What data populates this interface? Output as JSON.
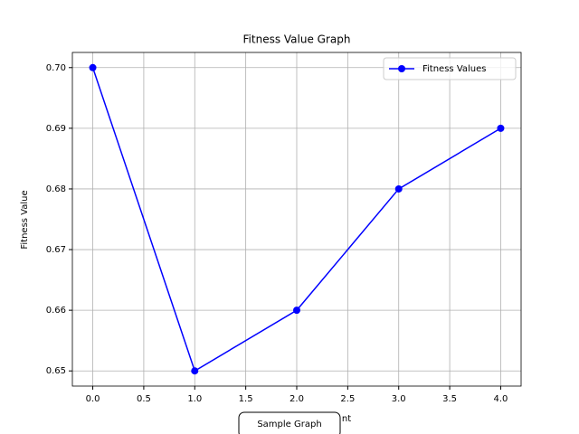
{
  "chart_data": {
    "type": "line",
    "title": "Fitness Value Graph",
    "x_label": "nt",
    "y_label": "Fitness Value",
    "annotation": "Sample Graph",
    "x": [
      0,
      1,
      2,
      3,
      4
    ],
    "series": [
      {
        "name": "Fitness Values",
        "color": "#0000ff",
        "values": [
          0.7,
          0.65,
          0.66,
          0.68,
          0.69
        ]
      }
    ],
    "xlim": [
      -0.2,
      4.2
    ],
    "ylim": [
      0.6475,
      0.7025
    ],
    "xticks": [
      {
        "value": 0,
        "label": "0.0"
      },
      0.5,
      {
        "value": 1,
        "label": "1.0"
      },
      1.5,
      {
        "value": 2,
        "label": "2.0"
      },
      2.5,
      {
        "value": 3,
        "label": "3.0"
      },
      3.5,
      {
        "value": 4,
        "label": "4.0"
      }
    ],
    "yticks": [
      0.65,
      0.66,
      0.67,
      0.68,
      0.69,
      {
        "value": 0.7,
        "label": "0.70"
      }
    ],
    "grid": true,
    "legend": "upper right"
  }
}
